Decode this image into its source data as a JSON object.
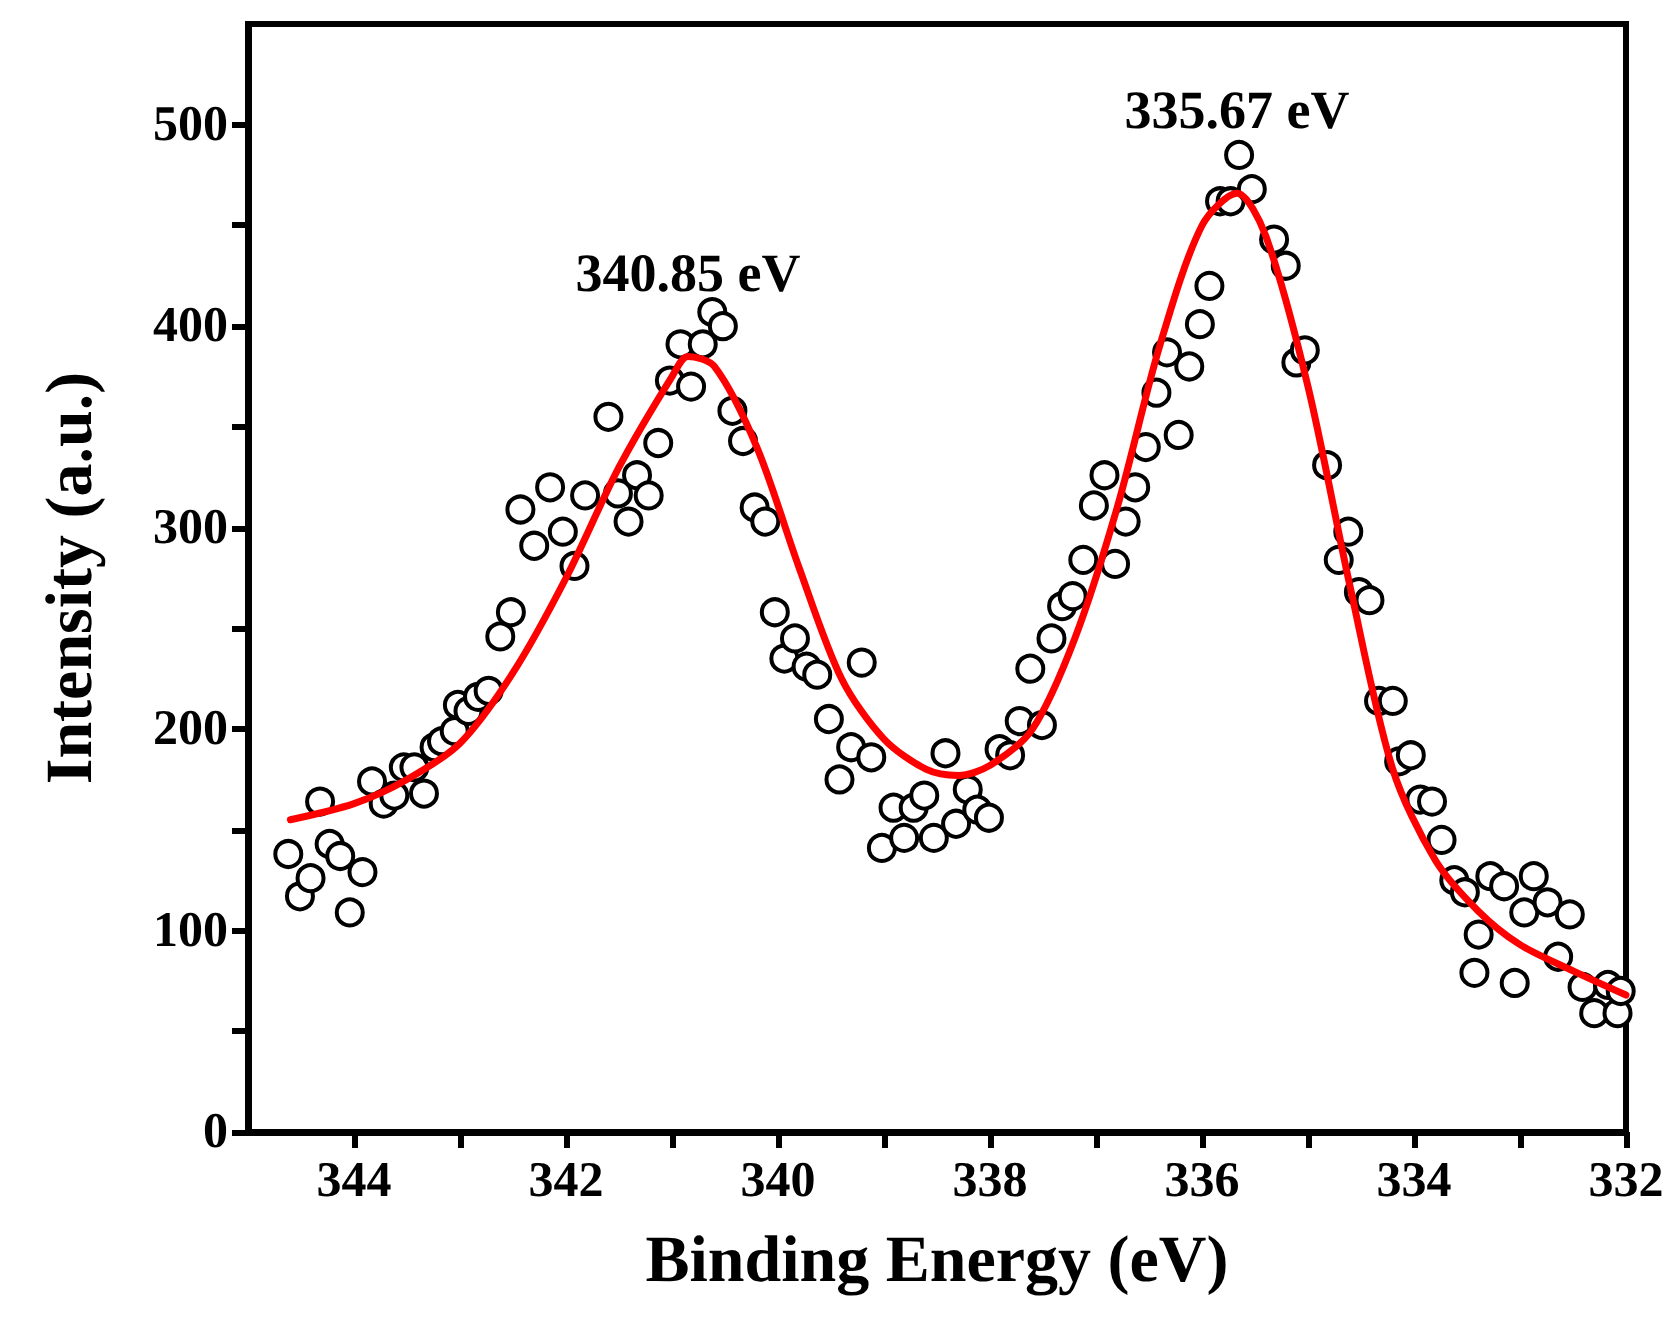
{
  "chart_data": {
    "type": "scatter",
    "xlabel": "Binding Energy (eV)",
    "ylabel": "Intensity (a.u.)",
    "xlim": [
      345,
      332
    ],
    "xticks": [
      344,
      342,
      340,
      338,
      336,
      334,
      332
    ],
    "ylim": [
      0,
      550
    ],
    "yticks": [
      0,
      100,
      200,
      300,
      400,
      500
    ],
    "grid": false,
    "annotations": [
      {
        "text": "340.85 eV",
        "x": 340.85,
        "y": 385
      },
      {
        "text": "335.67 eV",
        "x": 335.67,
        "y": 466
      }
    ],
    "series": [
      {
        "color": "#000000",
        "marker": "circle",
        "x": [
          344.62,
          344.51,
          344.41,
          344.32,
          344.23,
          344.13,
          344.04,
          343.92,
          343.83,
          343.72,
          343.62,
          343.53,
          343.43,
          343.34,
          343.24,
          343.17,
          343.05,
          343.02,
          342.92,
          342.83,
          342.73,
          342.62,
          342.52,
          342.43,
          342.3,
          342.15,
          342.03,
          341.92,
          341.82,
          341.6,
          341.51,
          341.41,
          341.33,
          341.22,
          341.13,
          341.02,
          340.92,
          340.82,
          340.71,
          340.62,
          340.52,
          340.43,
          340.33,
          340.22,
          340.12,
          340.03,
          339.94,
          339.84,
          339.73,
          339.63,
          339.52,
          339.42,
          339.31,
          339.21,
          339.12,
          339.02,
          338.91,
          338.81,
          338.72,
          338.62,
          338.53,
          338.42,
          338.32,
          338.21,
          338.12,
          338.01,
          337.91,
          337.81,
          337.72,
          337.62,
          337.51,
          337.42,
          337.32,
          337.22,
          337.12,
          337.02,
          336.92,
          336.82,
          336.72,
          336.63,
          336.53,
          336.43,
          336.33,
          336.22,
          336.12,
          336.02,
          335.93,
          335.83,
          335.73,
          335.65,
          335.53,
          335.32,
          335.21,
          335.11,
          335.03,
          334.82,
          334.71,
          334.62,
          334.52,
          334.42,
          334.33,
          334.2,
          334.14,
          334.03,
          333.94,
          333.83,
          333.74,
          333.62,
          333.52,
          333.43,
          333.39,
          333.28,
          333.15,
          333.05,
          332.96,
          332.87,
          332.74,
          332.64,
          332.53,
          332.41,
          332.3,
          332.17,
          332.08,
          332.05
        ],
        "values": [
          138,
          117,
          126,
          164,
          143,
          137,
          109,
          129,
          174,
          163,
          167,
          181,
          181,
          168,
          191,
          194,
          199,
          212,
          209,
          216,
          219,
          246,
          258,
          309,
          291,
          320,
          298,
          281,
          316,
          355,
          317,
          303,
          326,
          316,
          342,
          373,
          391,
          370,
          391,
          407,
          400,
          358,
          343,
          310,
          303,
          258,
          235,
          245,
          231,
          227,
          205,
          175,
          191,
          233,
          186,
          141,
          161,
          146,
          161,
          167,
          146,
          188,
          153,
          170,
          160,
          156,
          190,
          187,
          204,
          230,
          202,
          245,
          261,
          266,
          284,
          311,
          326,
          282,
          303,
          320,
          340,
          367,
          387,
          346,
          380,
          401,
          420,
          462,
          462,
          485,
          468,
          443,
          430,
          382,
          388,
          331,
          284,
          298,
          268,
          264,
          214,
          214,
          184,
          187,
          165,
          164,
          145,
          125,
          119,
          79,
          98,
          127,
          122,
          74,
          109,
          127,
          114,
          87,
          108,
          72,
          59,
          73,
          59,
          70
        ]
      },
      {
        "type": "line",
        "color": "#ff0000",
        "marker": "none",
        "line_style": "solid",
        "x": [
          344.6,
          344,
          343.5,
          343,
          342.5,
          342,
          341.5,
          341,
          340.85,
          340.6,
          340.2,
          339.8,
          339.4,
          339,
          338.6,
          338.3,
          338,
          337.6,
          337.2,
          336.8,
          336.4,
          336,
          335.67,
          335.4,
          335,
          334.6,
          334.2,
          333.8,
          333.4,
          333,
          332.5,
          332
        ],
        "values": [
          155,
          163,
          175,
          193,
          228,
          275,
          330,
          375,
          385,
          380,
          340,
          280,
          225,
          195,
          180,
          177,
          182,
          200,
          245,
          310,
          390,
          450,
          466,
          445,
          370,
          270,
          180,
          135,
          110,
          93,
          80,
          68
        ]
      }
    ]
  }
}
